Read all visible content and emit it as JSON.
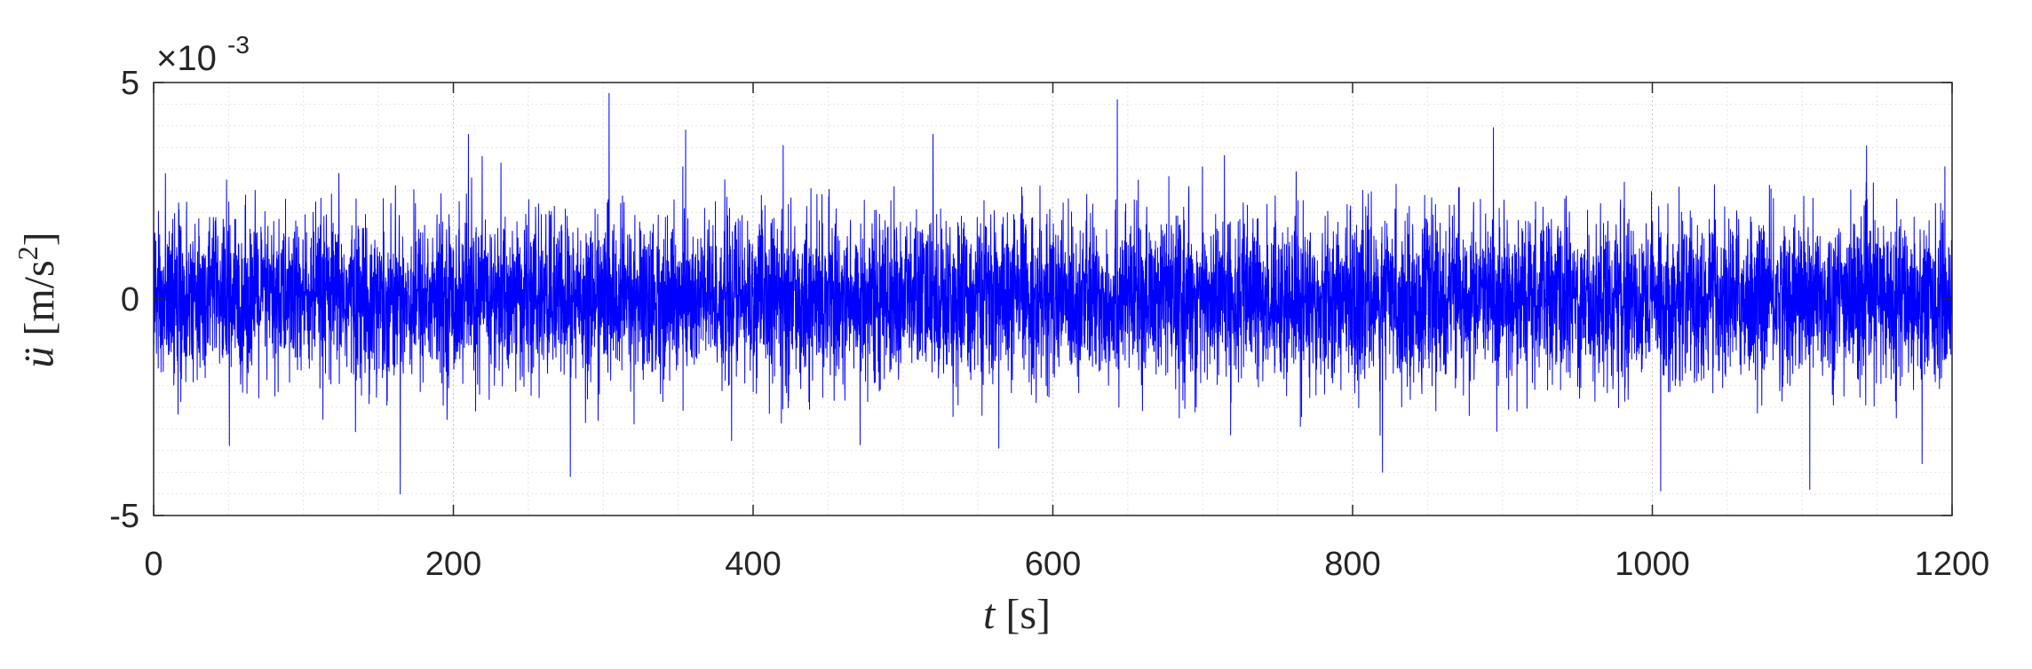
{
  "chart_data": {
    "type": "line",
    "title": "",
    "xlabel": "t [s]",
    "ylabel": "ü [m/s²]",
    "xlim": [
      0,
      1200
    ],
    "ylim": [
      -0.005,
      0.005
    ],
    "x_ticks": [
      0,
      200,
      400,
      600,
      800,
      1000,
      1200
    ],
    "x_tick_labels": [
      "0",
      "200",
      "400",
      "600",
      "800",
      "1000",
      "1200"
    ],
    "y_ticks": [
      -0.005,
      0,
      0.005
    ],
    "y_tick_labels": [
      "-5",
      "0",
      "5"
    ],
    "y_exponent": "×10-3",
    "grid": true,
    "minor_grid": true,
    "box": true,
    "series": [
      {
        "description": "random vibration acceleration signal, approximately stationary noise",
        "color": "#0000ff",
        "mean": 0,
        "typical_envelope": [
          -0.0022,
          0.0022
        ],
        "peaks": [
          {
            "t": 643,
            "value": 0.0046
          },
          {
            "t": 1105,
            "value": -0.0044
          },
          {
            "t": 278,
            "value": -0.0041
          },
          {
            "t": 355,
            "value": 0.0039
          },
          {
            "t": 520,
            "value": 0.0038
          },
          {
            "t": 210,
            "value": 0.0038
          },
          {
            "t": 820,
            "value": -0.004
          },
          {
            "t": 1180,
            "value": -0.0038
          }
        ]
      }
    ]
  },
  "colors": {
    "signal": "#0000ff",
    "axes": "#262626",
    "grid_major": "#c8c8c8",
    "grid_minor": "#e4e4e4"
  }
}
